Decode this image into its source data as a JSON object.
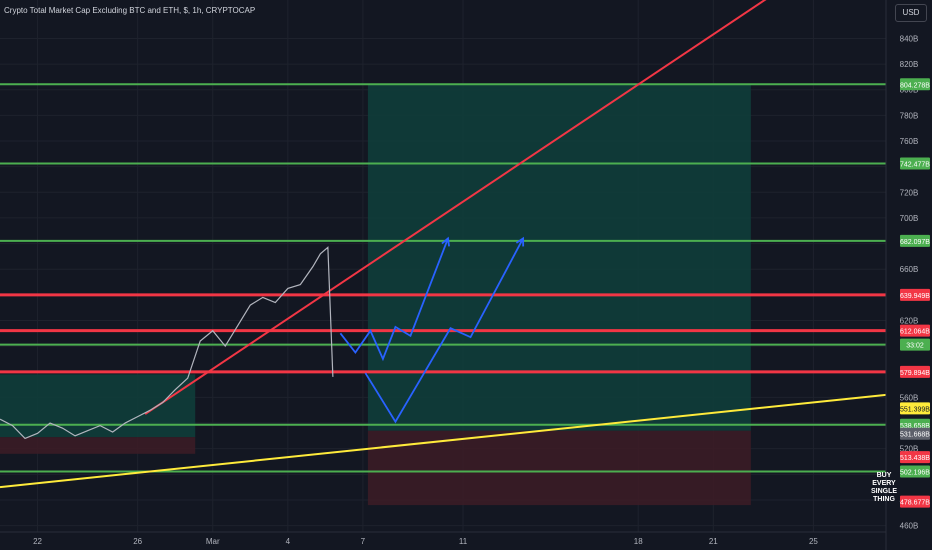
{
  "header": {
    "title": "Crypto Total Market Cap Excluding BTC and ETH, $, 1h, CRYPTOCAP",
    "currency": "USD"
  },
  "annotation": {
    "lines": [
      "BUY",
      "EVERY",
      "SINGLE",
      "THING"
    ]
  },
  "colors": {
    "background": "#131722",
    "support_green": "#4caf50",
    "resistance_red": "#f23645",
    "trendline_red": "#f23645",
    "trendline_yellow": "#ffeb3b",
    "projection_blue": "#2962ff",
    "target_zone": "#0f3d3a",
    "stop_zone": "#3b1c26"
  },
  "chart_data": {
    "type": "line",
    "title": "Crypto Total Market Cap Excluding BTC and ETH, $, 1h, CRYPTOCAP",
    "y_unit": "B",
    "ylim": [
      455,
      870
    ],
    "y_ticks": [
      {
        "value": 840,
        "label": "840B"
      },
      {
        "value": 820,
        "label": "820B"
      },
      {
        "value": 800,
        "label": "800B"
      },
      {
        "value": 780,
        "label": "780B"
      },
      {
        "value": 760,
        "label": "760B"
      },
      {
        "value": 740,
        "label": "740B"
      },
      {
        "value": 720,
        "label": "720B"
      },
      {
        "value": 700,
        "label": "700B"
      },
      {
        "value": 680,
        "label": "680B"
      },
      {
        "value": 660,
        "label": "660B"
      },
      {
        "value": 640,
        "label": "640B"
      },
      {
        "value": 620,
        "label": "620B"
      },
      {
        "value": 600,
        "label": "600B"
      },
      {
        "value": 580,
        "label": "580B"
      },
      {
        "value": 560,
        "label": "560B"
      },
      {
        "value": 540,
        "label": "540B"
      },
      {
        "value": 520,
        "label": "520B"
      },
      {
        "value": 500,
        "label": "500B"
      },
      {
        "value": 480,
        "label": "480B"
      },
      {
        "value": 460,
        "label": "460B"
      }
    ],
    "x_ticks": [
      {
        "day": 22,
        "label": "22"
      },
      {
        "day": 26,
        "label": "26"
      },
      {
        "day": 29,
        "label": "Mar"
      },
      {
        "day": 32,
        "label": "4"
      },
      {
        "day": 35,
        "label": "7"
      },
      {
        "day": 39,
        "label": "11"
      },
      {
        "day": 46,
        "label": "18"
      },
      {
        "day": 49,
        "label": "21"
      },
      {
        "day": 53,
        "label": "25"
      }
    ],
    "xlim": [
      20.5,
      55.9
    ],
    "horizontal_levels": [
      {
        "value": 804.278,
        "label": "804.278B",
        "color": "green"
      },
      {
        "value": 742.477,
        "label": "742.477B",
        "color": "green"
      },
      {
        "value": 682.097,
        "label": "682.097B",
        "color": "green"
      },
      {
        "value": 639.949,
        "label": "639.949B",
        "color": "red"
      },
      {
        "value": 612.064,
        "label": "612.064B",
        "color": "red"
      },
      {
        "value": 601.2,
        "label": "33:02",
        "color": "green"
      },
      {
        "value": 579.894,
        "label": "579.894B",
        "color": "red"
      },
      {
        "value": 538.658,
        "label": "538.658B",
        "color": "green"
      },
      {
        "value": 502.196,
        "label": "502.196B",
        "color": "green"
      }
    ],
    "price_tags": [
      {
        "value": 551.399,
        "label": "551.399B",
        "color": "yellow"
      },
      {
        "value": 531.668,
        "label": "531.668B",
        "color": "gray"
      },
      {
        "value": 513.438,
        "label": "513.438B",
        "color": "red"
      },
      {
        "value": 478.677,
        "label": "478.677B",
        "color": "red"
      }
    ],
    "price": {
      "name": "Crypto Total Market Cap Excluding BTC and ETH",
      "x": [
        20.5,
        21,
        21.5,
        22,
        22.5,
        23,
        23.5,
        24,
        24.5,
        25,
        25.5,
        26,
        26.5,
        27,
        27.5,
        28,
        28.5,
        29,
        29.5,
        30,
        30.5,
        31,
        31.5,
        32,
        32.5,
        33,
        33.3,
        33.6,
        33.8
      ],
      "y": [
        543,
        538,
        528,
        532,
        540,
        536,
        530,
        534,
        538,
        533,
        540,
        545,
        550,
        556,
        566,
        575,
        604,
        612,
        600,
        616,
        632,
        638,
        634,
        645,
        648,
        662,
        672,
        677,
        576
      ]
    },
    "trendlines": [
      {
        "name": "rising",
        "x": [
          26.3,
          55.5
        ],
        "y": [
          547,
          928
        ],
        "color": "red"
      },
      {
        "name": "support",
        "x": [
          20.5,
          55.9
        ],
        "y": [
          490,
          562
        ],
        "color": "yellow"
      }
    ],
    "projections": [
      {
        "x": [
          34.1,
          34.7,
          35.3,
          35.8,
          36.3,
          36.9,
          38.4
        ],
        "y": [
          610,
          595,
          612,
          590,
          615,
          608,
          684
        ]
      },
      {
        "x": [
          35.1,
          36.3,
          38.5,
          39.3,
          41.4
        ],
        "y": [
          579,
          541,
          614,
          607,
          684
        ]
      }
    ],
    "zones": [
      {
        "type": "target",
        "x": [
          35.2,
          50.5
        ],
        "y": [
          534,
          804.278
        ]
      },
      {
        "type": "stop",
        "x": [
          35.2,
          50.5
        ],
        "y": [
          476,
          534
        ]
      },
      {
        "type": "target",
        "x": [
          20.5,
          28.3
        ],
        "y": [
          529,
          578
        ]
      },
      {
        "type": "stop",
        "x": [
          20.5,
          28.3
        ],
        "y": [
          516,
          529
        ]
      }
    ]
  }
}
